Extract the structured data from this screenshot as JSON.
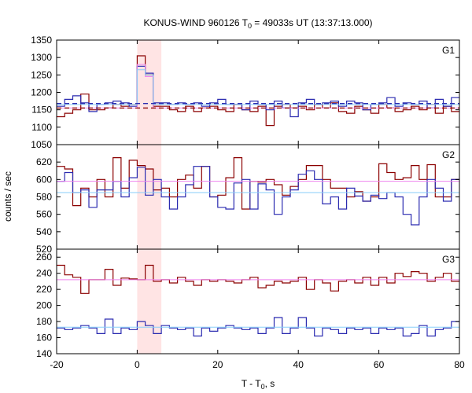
{
  "figure": {
    "title_main": "KONUS-WIND 960126 T",
    "title_sub": "0",
    "title_rest": " = 49033s UT (13:37:13.000)",
    "ylabel": "counts / sec",
    "xlabel_main": "T - T",
    "xlabel_sub": "0",
    "xlabel_rest": ", s"
  },
  "chart_data": [
    {
      "type": "line",
      "panel": "G1",
      "x_range": [
        -20,
        80
      ],
      "ylim": [
        1050,
        1350
      ],
      "y_ticks": [
        1050,
        1100,
        1150,
        1200,
        1250,
        1300,
        1350
      ],
      "x_ticks": [
        -20,
        0,
        20,
        40,
        60,
        80
      ],
      "highlight_x": [
        0,
        6
      ],
      "bin_edges": [
        -20,
        -18,
        -16,
        -14,
        -12,
        -10,
        -8,
        -6,
        -4,
        -2,
        0,
        2,
        4,
        6,
        8,
        10,
        12,
        14,
        16,
        18,
        20,
        22,
        24,
        26,
        28,
        30,
        32,
        34,
        36,
        38,
        40,
        42,
        44,
        46,
        48,
        50,
        52,
        54,
        56,
        58,
        60,
        62,
        64,
        66,
        68,
        70,
        72,
        74,
        76,
        78,
        80
      ],
      "series": [
        {
          "color": "#8b0000",
          "values": [
            1130,
            1140,
            1150,
            1195,
            1150,
            1150,
            1155,
            1165,
            1160,
            1165,
            1305,
            1250,
            1160,
            1160,
            1150,
            1145,
            1160,
            1145,
            1155,
            1160,
            1150,
            1145,
            1165,
            1150,
            1145,
            1160,
            1105,
            1160,
            1165,
            1155,
            1160,
            1150,
            1165,
            1155,
            1170,
            1145,
            1140,
            1160,
            1150,
            1140,
            1165,
            1155,
            1145,
            1150,
            1160,
            1150,
            1165,
            1140,
            1160,
            1145
          ]
        },
        {
          "color": "#2b2bb0",
          "values": [
            1160,
            1180,
            1190,
            1170,
            1145,
            1165,
            1170,
            1175,
            1170,
            1160,
            1275,
            1255,
            1170,
            1170,
            1165,
            1170,
            1165,
            1170,
            1160,
            1170,
            1180,
            1165,
            1165,
            1150,
            1175,
            1165,
            1150,
            1175,
            1155,
            1130,
            1170,
            1180,
            1165,
            1170,
            1175,
            1160,
            1175,
            1170,
            1150,
            1165,
            1170,
            1185,
            1160,
            1170,
            1165,
            1175,
            1155,
            1180,
            1160,
            1185
          ]
        },
        {
          "color": "#ee82ee",
          "values": [
            1155,
            1155,
            1155,
            1155,
            1155,
            1155,
            1155,
            1155,
            1155,
            1155,
            1280,
            1245,
            1155,
            1155,
            1155,
            1155,
            1155,
            1155,
            1155,
            1155,
            1155,
            1155,
            1155,
            1155,
            1155,
            1155,
            1155,
            1155,
            1155,
            1155,
            1155,
            1155,
            1155,
            1155,
            1155,
            1155,
            1155,
            1155,
            1155,
            1155,
            1155,
            1155,
            1155,
            1155,
            1155,
            1155,
            1155,
            1155,
            1155,
            1155
          ]
        },
        {
          "color": "#87cefa",
          "values": [
            1165,
            1165,
            1165,
            1165,
            1165,
            1165,
            1165,
            1165,
            1165,
            1165,
            1265,
            1250,
            1165,
            1165,
            1165,
            1165,
            1165,
            1165,
            1165,
            1165,
            1165,
            1165,
            1165,
            1165,
            1165,
            1165,
            1165,
            1165,
            1165,
            1165,
            1165,
            1165,
            1165,
            1165,
            1165,
            1165,
            1165,
            1165,
            1165,
            1165,
            1165,
            1165,
            1165,
            1165,
            1165,
            1165,
            1165,
            1165,
            1165,
            1165
          ]
        }
      ],
      "hlines": [
        {
          "color": "#8b0000",
          "value": 1155,
          "dash": true
        },
        {
          "color": "#2b2bb0",
          "value": 1168,
          "dash": true
        }
      ]
    },
    {
      "type": "line",
      "panel": "G2",
      "x_range": [
        -20,
        80
      ],
      "ylim": [
        520,
        640
      ],
      "y_ticks": [
        520,
        540,
        560,
        580,
        600,
        620
      ],
      "x_ticks": [
        -20,
        0,
        20,
        40,
        60,
        80
      ],
      "highlight_x": [
        0,
        6
      ],
      "bin_edges": [
        -20,
        -18,
        -16,
        -14,
        -12,
        -10,
        -8,
        -6,
        -4,
        -2,
        0,
        2,
        4,
        6,
        8,
        10,
        12,
        14,
        16,
        18,
        20,
        22,
        24,
        26,
        28,
        30,
        32,
        34,
        36,
        38,
        40,
        42,
        44,
        46,
        48,
        50,
        52,
        54,
        56,
        58,
        60,
        62,
        64,
        66,
        68,
        70,
        72,
        74,
        76,
        78,
        80
      ],
      "series": [
        {
          "color": "#8b0000",
          "values": [
            615,
            612,
            570,
            590,
            580,
            600,
            580,
            625,
            590,
            622,
            616,
            612,
            588,
            590,
            580,
            600,
            605,
            590,
            615,
            580,
            582,
            602,
            625,
            566,
            598,
            597,
            600,
            594,
            582,
            592,
            600,
            616,
            616,
            600,
            590,
            590,
            580,
            586,
            575,
            580,
            618,
            608,
            600,
            602,
            616,
            600,
            617,
            580,
            580,
            600
          ]
        },
        {
          "color": "#2b2bb0",
          "values": [
            598,
            608,
            585,
            588,
            568,
            588,
            588,
            598,
            580,
            602,
            614,
            582,
            600,
            580,
            566,
            580,
            594,
            615,
            615,
            580,
            568,
            566,
            596,
            600,
            566,
            595,
            588,
            560,
            580,
            588,
            606,
            610,
            600,
            572,
            580,
            566,
            590,
            581,
            575,
            582,
            578,
            585,
            580,
            560,
            548,
            580,
            600,
            590,
            575,
            600
          ]
        },
        {
          "color": "#ee82ee",
          "values": [
            598,
            598,
            598,
            598,
            598,
            598,
            598,
            598,
            598,
            598,
            598,
            598,
            598,
            598,
            598,
            598,
            598,
            598,
            598,
            598,
            598,
            598,
            598,
            598,
            598,
            598,
            598,
            598,
            598,
            598,
            598,
            598,
            598,
            598,
            598,
            598,
            598,
            598,
            598,
            598,
            598,
            598,
            598,
            598,
            598,
            598,
            598,
            598,
            598,
            598
          ]
        },
        {
          "color": "#87cefa",
          "values": [
            585,
            585,
            585,
            585,
            585,
            585,
            585,
            585,
            585,
            585,
            585,
            585,
            585,
            585,
            585,
            585,
            585,
            585,
            585,
            585,
            585,
            585,
            585,
            585,
            585,
            585,
            585,
            585,
            585,
            585,
            585,
            585,
            585,
            585,
            585,
            585,
            585,
            585,
            585,
            585,
            585,
            585,
            585,
            585,
            585,
            585,
            585,
            585,
            585,
            585
          ]
        }
      ],
      "hlines": []
    },
    {
      "type": "line",
      "panel": "G3",
      "x_range": [
        -20,
        80
      ],
      "ylim": [
        140,
        270
      ],
      "y_ticks": [
        140,
        160,
        180,
        200,
        220,
        240,
        260
      ],
      "x_ticks": [
        -20,
        0,
        20,
        40,
        60,
        80
      ],
      "highlight_x": [
        0,
        6
      ],
      "bin_edges": [
        -20,
        -18,
        -16,
        -14,
        -12,
        -10,
        -8,
        -6,
        -4,
        -2,
        0,
        2,
        4,
        6,
        8,
        10,
        12,
        14,
        16,
        18,
        20,
        22,
        24,
        26,
        28,
        30,
        32,
        34,
        36,
        38,
        40,
        42,
        44,
        46,
        48,
        50,
        52,
        54,
        56,
        58,
        60,
        62,
        64,
        66,
        68,
        70,
        72,
        74,
        76,
        78,
        80
      ],
      "series": [
        {
          "color": "#8b0000",
          "values": [
            250,
            238,
            235,
            215,
            232,
            232,
            245,
            225,
            234,
            233,
            232,
            250,
            230,
            232,
            228,
            235,
            230,
            225,
            232,
            230,
            232,
            230,
            228,
            232,
            235,
            222,
            225,
            230,
            228,
            230,
            235,
            220,
            232,
            228,
            218,
            230,
            232,
            228,
            235,
            225,
            235,
            228,
            240,
            236,
            242,
            240,
            230,
            235,
            240,
            230
          ]
        },
        {
          "color": "#2b2bb0",
          "values": [
            172,
            170,
            172,
            175,
            172,
            165,
            183,
            165,
            172,
            170,
            180,
            175,
            165,
            175,
            172,
            170,
            172,
            162,
            172,
            168,
            172,
            175,
            172,
            170,
            172,
            165,
            172,
            185,
            165,
            172,
            185,
            172,
            162,
            172,
            170,
            165,
            172,
            170,
            172,
            165,
            172,
            170,
            172,
            162,
            165,
            175,
            162,
            170,
            172,
            180
          ]
        },
        {
          "color": "#ee82ee",
          "values": [
            232,
            232,
            232,
            232,
            232,
            232,
            232,
            232,
            232,
            232,
            232,
            232,
            232,
            232,
            232,
            232,
            232,
            232,
            232,
            232,
            232,
            232,
            232,
            232,
            232,
            232,
            232,
            232,
            232,
            232,
            232,
            232,
            232,
            232,
            232,
            232,
            232,
            232,
            232,
            232,
            232,
            232,
            232,
            232,
            232,
            232,
            232,
            232,
            232,
            232
          ]
        },
        {
          "color": "#87cefa",
          "values": [
            173,
            173,
            173,
            173,
            173,
            173,
            173,
            173,
            173,
            173,
            173,
            173,
            173,
            173,
            173,
            173,
            173,
            173,
            173,
            173,
            173,
            173,
            173,
            173,
            173,
            173,
            173,
            173,
            173,
            173,
            173,
            173,
            173,
            173,
            173,
            173,
            173,
            173,
            173,
            173,
            173,
            173,
            173,
            173,
            173,
            173,
            173,
            173,
            173,
            173
          ]
        }
      ],
      "hlines": []
    }
  ]
}
